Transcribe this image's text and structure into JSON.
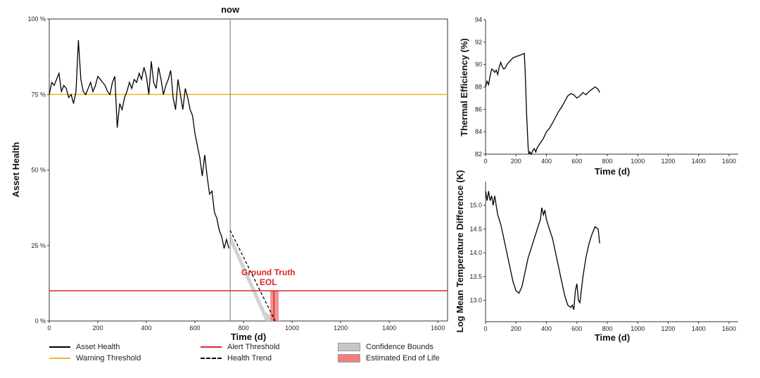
{
  "chart_data": [
    {
      "id": "asset-health",
      "type": "line",
      "title": "",
      "xlabel": "Time (d)",
      "ylabel": "Asset Health",
      "xlim": [
        0,
        1640
      ],
      "ylim": [
        0,
        100
      ],
      "x_ticks": [
        0,
        200,
        400,
        600,
        800,
        1000,
        1200,
        1400,
        1600
      ],
      "y_ticks": [
        0,
        25,
        50,
        75,
        100
      ],
      "y_tick_labels": [
        "0 %",
        "25 %",
        "50 %",
        "75 %",
        "100 %"
      ],
      "now": {
        "x": 745,
        "label": "now"
      },
      "warning_threshold": {
        "name": "Warning Threshold",
        "value": 75,
        "color": "#f0b429"
      },
      "alert_threshold": {
        "name": "Alert Threshold",
        "value": 10,
        "color": "#d62728"
      },
      "series": [
        {
          "name": "Asset Health",
          "color": "#000000",
          "x": [
            0,
            10,
            20,
            30,
            40,
            50,
            60,
            70,
            80,
            90,
            100,
            110,
            120,
            130,
            140,
            150,
            160,
            170,
            180,
            190,
            200,
            210,
            220,
            230,
            240,
            250,
            260,
            270,
            280,
            290,
            300,
            310,
            320,
            330,
            340,
            350,
            360,
            370,
            380,
            390,
            400,
            410,
            420,
            430,
            440,
            450,
            460,
            470,
            480,
            490,
            500,
            510,
            520,
            530,
            540,
            550,
            560,
            570,
            580,
            590,
            600,
            610,
            620,
            630,
            640,
            650,
            660,
            670,
            680,
            690,
            700,
            710,
            720,
            730,
            740
          ],
          "values": [
            75,
            79,
            78,
            80,
            82,
            76,
            78,
            77,
            74,
            75,
            72,
            76,
            93,
            80,
            76,
            75,
            77,
            79,
            76,
            78,
            81,
            80,
            79,
            78,
            76,
            75,
            79,
            81,
            64,
            72,
            70,
            74,
            76,
            79,
            77,
            80,
            79,
            82,
            80,
            84,
            81,
            75,
            86,
            79,
            77,
            84,
            80,
            75,
            78,
            80,
            83,
            74,
            70,
            80,
            75,
            70,
            77,
            74,
            70,
            68,
            62,
            58,
            54,
            48,
            55,
            48,
            42,
            43,
            36,
            34,
            30,
            28,
            24,
            27,
            24
          ]
        }
      ],
      "health_trend": {
        "name": "Health Trend",
        "x": [
          745,
          930
        ],
        "values": [
          30,
          0
        ]
      },
      "confidence_bounds": {
        "name": "Confidence Bounds",
        "x": [
          745,
          890,
          950
        ],
        "upper": [
          29,
          3,
          0
        ],
        "lower": [
          26,
          0,
          0
        ],
        "color": "#c8c8c8"
      },
      "estimated_eol": {
        "name": "Estimated End of Life",
        "x_range": [
          910,
          945
        ],
        "color": "#f08080"
      },
      "ground_truth_eol": {
        "label_line1": "Ground Truth",
        "label_line2": "EOL",
        "x": 925,
        "color": "#d62728"
      },
      "legend": [
        {
          "name": "Asset Health",
          "style": "line",
          "color": "#000000"
        },
        {
          "name": "Alert Threshold",
          "style": "line",
          "color": "#d62728"
        },
        {
          "name": "Confidence Bounds",
          "style": "box",
          "color": "#c8c8c8"
        },
        {
          "name": "Warning Threshold",
          "style": "line",
          "color": "#f0b429"
        },
        {
          "name": "Health Trend",
          "style": "dash",
          "color": "#000000"
        },
        {
          "name": "Estimated End of Life",
          "style": "box",
          "color": "#f08080"
        }
      ]
    },
    {
      "id": "thermal-efficiency",
      "type": "line",
      "title": "",
      "xlabel": "Time (d)",
      "ylabel": "Thermal Efficiency (%)",
      "xlim": [
        0,
        1660
      ],
      "ylim": [
        82,
        94
      ],
      "x_ticks": [
        0,
        200,
        400,
        600,
        800,
        1000,
        1200,
        1400,
        1600
      ],
      "y_ticks": [
        82,
        84,
        86,
        88,
        90,
        92,
        94
      ],
      "series": [
        {
          "name": "Thermal Efficiency",
          "color": "#000000",
          "x": [
            0,
            10,
            20,
            30,
            40,
            50,
            60,
            70,
            80,
            90,
            100,
            110,
            120,
            130,
            140,
            160,
            180,
            200,
            220,
            240,
            255,
            260,
            265,
            270,
            275,
            280,
            285,
            290,
            300,
            310,
            320,
            330,
            340,
            360,
            380,
            400,
            420,
            440,
            460,
            480,
            500,
            520,
            540,
            560,
            580,
            600,
            620,
            640,
            660,
            680,
            700,
            720,
            740,
            750
          ],
          "values": [
            88.0,
            88.5,
            88.2,
            89.0,
            89.6,
            89.5,
            89.3,
            89.5,
            89.1,
            89.8,
            90.2,
            89.8,
            89.6,
            89.7,
            90.0,
            90.3,
            90.6,
            90.7,
            90.8,
            90.9,
            91.0,
            89.5,
            87.5,
            85.5,
            84.0,
            82.5,
            82.0,
            82.2,
            82.0,
            82.3,
            82.5,
            82.2,
            82.6,
            83.0,
            83.4,
            84.0,
            84.3,
            84.8,
            85.3,
            85.8,
            86.2,
            86.7,
            87.2,
            87.4,
            87.3,
            87.0,
            87.2,
            87.5,
            87.3,
            87.6,
            87.8,
            88.0,
            87.8,
            87.5
          ]
        }
      ]
    },
    {
      "id": "log-mean-temperature-difference",
      "type": "line",
      "title": "",
      "xlabel": "Time (d)",
      "ylabel": "Log Mean Temperature Difference (K)",
      "xlim": [
        0,
        1660
      ],
      "ylim": [
        12.55,
        15.5
      ],
      "x_ticks": [
        0,
        200,
        400,
        600,
        800,
        1000,
        1200,
        1400,
        1600
      ],
      "y_ticks": [
        13.0,
        13.5,
        14.0,
        14.5,
        15.0
      ],
      "y_tick_labels": [
        "13.0",
        "13.5",
        "14.0",
        "14.5",
        "15.0"
      ],
      "series": [
        {
          "name": "Log Mean Temperature Difference",
          "color": "#000000",
          "x": [
            0,
            10,
            20,
            30,
            40,
            50,
            60,
            70,
            80,
            100,
            120,
            140,
            160,
            180,
            200,
            220,
            240,
            260,
            280,
            300,
            320,
            340,
            360,
            370,
            380,
            390,
            400,
            420,
            440,
            460,
            480,
            500,
            520,
            540,
            560,
            570,
            580,
            590,
            600,
            610,
            620,
            640,
            660,
            680,
            700,
            720,
            740,
            750
          ],
          "values": [
            15.3,
            15.1,
            15.3,
            15.1,
            15.2,
            15.0,
            15.2,
            15.0,
            14.8,
            14.6,
            14.3,
            14.0,
            13.7,
            13.4,
            13.2,
            13.15,
            13.3,
            13.6,
            13.9,
            14.1,
            14.3,
            14.5,
            14.7,
            14.95,
            14.8,
            14.9,
            14.7,
            14.5,
            14.3,
            14.0,
            13.7,
            13.4,
            13.1,
            12.9,
            12.85,
            12.9,
            12.8,
            13.2,
            13.35,
            13.0,
            12.95,
            13.5,
            13.9,
            14.2,
            14.4,
            14.55,
            14.5,
            14.2
          ]
        }
      ]
    }
  ]
}
